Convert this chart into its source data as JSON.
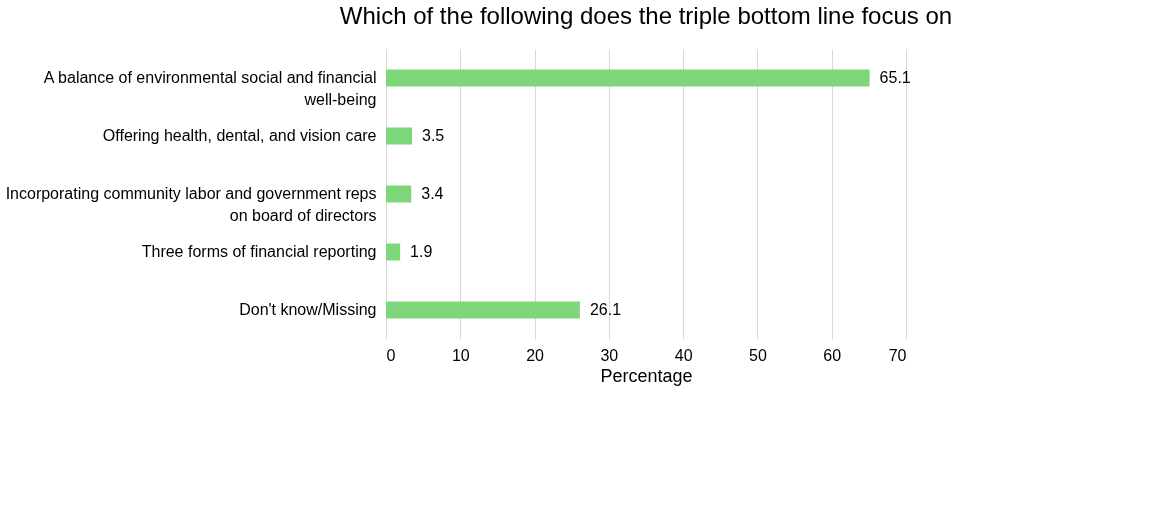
{
  "chart_data": {
    "type": "bar",
    "orientation": "horizontal",
    "title": "Which of the following does the triple bottom line focus on",
    "xlabel": "Percentage",
    "categories": [
      "A balance of environmental social and financial well-being",
      "Offering health, dental, and vision care",
      "Incorporating community labor and government reps on board of directors",
      "Three forms of financial reporting",
      "Don't know/Missing"
    ],
    "values": [
      65.1,
      3.5,
      3.4,
      1.9,
      26.1
    ],
    "color": "#7ed67a",
    "xlim": [
      0,
      70
    ],
    "xticks": [
      0,
      10,
      20,
      30,
      40,
      50,
      60,
      70
    ],
    "grid": "x",
    "data_labels": true
  }
}
